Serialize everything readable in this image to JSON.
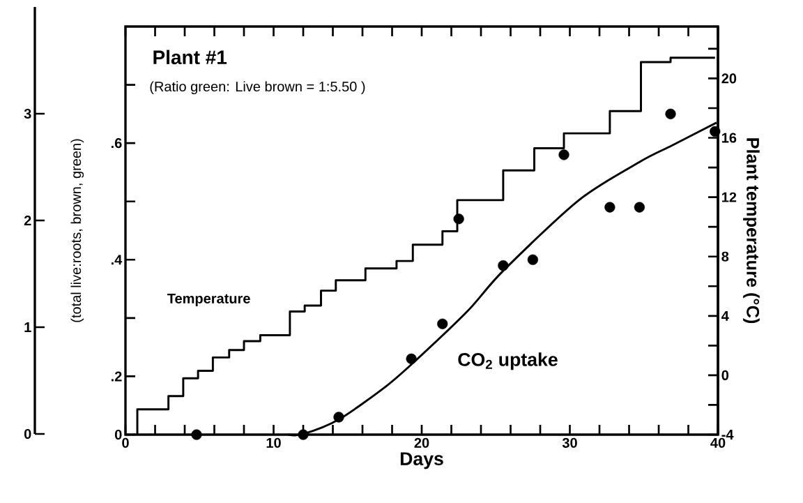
{
  "chart_data": {
    "type": "scatter",
    "xlabel": "Days",
    "ylabel": "(total live:roots, brown, green)",
    "y2label": "Plant temperature (°C)",
    "annotations": [
      "Plant #1",
      "(Ratio green: Live brown = 1:5.50 )"
    ],
    "xlim": [
      0,
      40
    ],
    "xticks": [
      0,
      {
        "value": 2,
        "label": null
      },
      {
        "value": 4,
        "label": null
      },
      {
        "value": 6,
        "label": null
      },
      {
        "value": 8,
        "label": null
      },
      10,
      {
        "value": 12,
        "label": null
      },
      {
        "value": 14,
        "label": null
      },
      {
        "value": 16,
        "label": null
      },
      {
        "value": 18,
        "label": null
      },
      20,
      {
        "value": 22,
        "label": null
      },
      {
        "value": 24,
        "label": null
      },
      {
        "value": 26,
        "label": null
      },
      {
        "value": 28,
        "label": null
      },
      30,
      {
        "value": 32,
        "label": null
      },
      {
        "value": 34,
        "label": null
      },
      {
        "value": 36,
        "label": null
      },
      {
        "value": 38,
        "label": null
      },
      40
    ],
    "ylim": [
      0.1,
      0.8
    ],
    "yticks": [
      {
        "value": 0.1,
        "label": "0"
      },
      {
        "value": 0.2,
        "label": ".2"
      },
      {
        "value": 0.3,
        "label": null
      },
      {
        "value": 0.4,
        "label": ".4"
      },
      {
        "value": 0.5,
        "label": null
      },
      {
        "value": 0.6,
        "label": ".6"
      },
      {
        "value": 0.7,
        "label": null
      }
    ],
    "y2lim": [
      -4,
      23.5
    ],
    "y2ticks": [
      -4,
      {
        "value": -2,
        "label": null
      },
      0,
      {
        "value": 2,
        "label": null
      },
      4,
      {
        "value": 6,
        "label": null
      },
      8,
      {
        "value": 10,
        "label": null
      },
      12,
      {
        "value": 14,
        "label": null
      },
      16,
      {
        "value": 18,
        "label": null
      },
      20,
      {
        "value": 22,
        "label": null
      }
    ],
    "y3lim": [
      0,
      4
    ],
    "y3ticks": [
      0,
      1,
      2,
      3
    ],
    "grid": false,
    "series": [
      {
        "name": "Temperature",
        "type": "step",
        "axis": "y2",
        "color": "#000000",
        "marker": "none",
        "x": [
          0.8,
          0.8,
          2.9,
          3.9,
          4.9,
          5.9,
          7.0,
          8.0,
          9.1,
          11.1,
          12.1,
          13.2,
          14.2,
          16.2,
          18.3,
          19.4,
          21.4,
          22.4,
          25.5,
          27.6,
          29.6,
          32.7,
          34.8,
          36.8,
          39.8
        ],
        "values": [
          -4,
          -2.3,
          -1.4,
          -0.2,
          0.3,
          1.2,
          1.7,
          2.3,
          2.7,
          4.3,
          4.7,
          5.7,
          6.4,
          7.2,
          7.7,
          8.8,
          9.7,
          11.8,
          13.8,
          15.3,
          16.3,
          17.8,
          21.1,
          21.4,
          21.4
        ]
      },
      {
        "name": "CO$_{2}$ uptake",
        "color": "#000000",
        "marker": "circle",
        "x": [
          4.8,
          12.0,
          14.4,
          19.3,
          21.4,
          22.5,
          25.5,
          27.5,
          29.6,
          32.7,
          34.7,
          36.8,
          39.8
        ],
        "values": [
          0.1,
          0.1,
          0.13,
          0.23,
          0.29,
          0.47,
          0.39,
          0.4,
          0.58,
          0.49,
          0.49,
          0.65,
          0.62
        ]
      },
      {
        "type": "line",
        "color": "#000000",
        "marker": "none",
        "x": [
          11,
          12,
          14.4,
          17.6,
          19.8,
          23.1,
          25.5,
          30.6,
          34.8,
          36.9,
          39.9
        ],
        "values": [
          0.1,
          0.101,
          0.126,
          0.183,
          0.232,
          0.312,
          0.381,
          0.502,
          0.569,
          0.596,
          0.635
        ]
      }
    ]
  }
}
